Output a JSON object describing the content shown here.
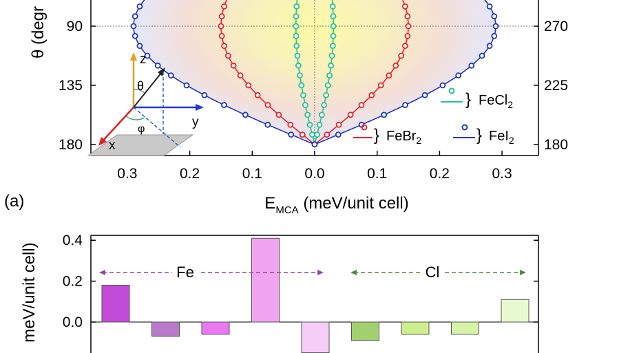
{
  "chart_data": [
    {
      "type": "scatter",
      "panel_label": "(a)",
      "xlabel_main": "E",
      "xlabel_sub": "MCA",
      "xlabel_rest": " (meV/unit cell)",
      "ylabel_left": "θ (degr",
      "xlim": [
        -0.34,
        0.34
      ],
      "x_ticks": [
        "0.3",
        "0.2",
        "0.1",
        "0.0",
        "0.1",
        "0.2",
        "0.3"
      ],
      "x_tick_values": [
        -0.3,
        -0.2,
        -0.1,
        0.0,
        0.1,
        0.2,
        0.3
      ],
      "y_ticks_left": [
        "90",
        "135",
        "180"
      ],
      "y_tick_values_left": [
        90,
        135,
        180
      ],
      "y_ticks_right": [
        "270",
        "225",
        "180"
      ],
      "series": [
        {
          "name": "FeCl",
          "name_sub": "2",
          "color": "#22c48a",
          "amplitude": 0.03
        },
        {
          "name": "FeBr",
          "name_sub": "2",
          "color": "#e8222a",
          "amplitude": 0.15
        },
        {
          "name": "FeI",
          "name_sub": "2",
          "color": "#1e35c8",
          "amplitude": 0.29
        }
      ],
      "inset_axes": {
        "z": "z",
        "y": "y",
        "x": "x",
        "theta": "θ",
        "phi": "φ"
      }
    },
    {
      "type": "bar",
      "ylabel": "meV/unit cell)",
      "ylim": [
        -0.15,
        0.43
      ],
      "y_ticks": [
        "0.4",
        "0.2",
        "0.0"
      ],
      "y_tick_values": [
        0.4,
        0.2,
        0.0
      ],
      "group_labels": [
        "Fe",
        "Cl"
      ],
      "values": [
        0.18,
        -0.07,
        -0.06,
        0.41,
        -0.15,
        -0.09,
        -0.06,
        -0.06,
        0.11
      ],
      "colors": [
        "#c34ad8",
        "#b97ac9",
        "#eb78f0",
        "#f1a4f1",
        "#f6cdf6",
        "#a3d06f",
        "#cdf08d",
        "#d6f4a8",
        "#e8fbd0"
      ],
      "group_colors": [
        "#8a4aa8",
        "#4e8a3c"
      ]
    }
  ]
}
